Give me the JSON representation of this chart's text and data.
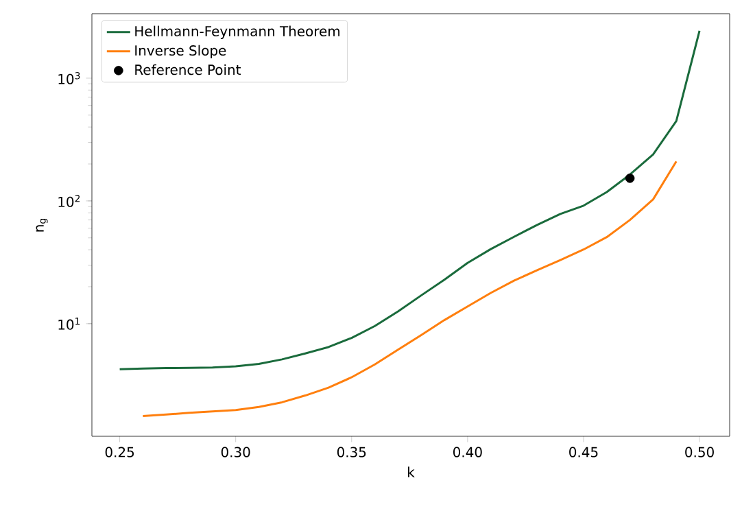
{
  "chart_data": {
    "type": "line",
    "xlabel": "k",
    "ylabel": "n$_{g}$",
    "log": "y",
    "legend": "top left",
    "grid": false,
    "xlim": [
      0.238,
      0.513
    ],
    "xticks": [
      0.25,
      {
        "value": 0.3,
        "label": "0.30"
      },
      0.35,
      {
        "value": 0.4,
        "label": "0.40"
      },
      0.45,
      {
        "value": 0.5,
        "label": "0.50"
      }
    ],
    "ylim": [
      1.21,
      3350
    ],
    "yticks": [
      {
        "value": 10,
        "label": "10$^{1}$"
      },
      {
        "value": 100,
        "label": "10$^{2}$"
      },
      {
        "value": 1000,
        "label": "10$^{3}$"
      }
    ],
    "series": [
      {
        "name": "Hellmann-Feynmann Theorem",
        "color": "#1a6b3c",
        "marker": "none",
        "x": [
          0.25,
          0.26,
          0.27,
          0.28,
          0.29,
          0.3,
          0.31,
          0.32,
          0.33,
          0.34,
          0.35,
          0.36,
          0.37,
          0.38,
          0.39,
          0.4,
          0.41,
          0.42,
          0.43,
          0.44,
          0.45,
          0.46,
          0.47,
          0.48,
          0.49,
          0.5
        ],
        "values": [
          4.25,
          4.31,
          4.35,
          4.37,
          4.4,
          4.5,
          4.7,
          5.12,
          5.72,
          6.45,
          7.66,
          9.57,
          12.6,
          17,
          22.8,
          31.3,
          40.5,
          51,
          63.8,
          78.4,
          91.5,
          118,
          164,
          239,
          448,
          2430
        ]
      },
      {
        "name": "Inverse Slope",
        "color": "#ff7f0e",
        "marker": "none",
        "x": [
          0.26,
          0.27,
          0.28,
          0.29,
          0.3,
          0.31,
          0.32,
          0.33,
          0.34,
          0.35,
          0.36,
          0.37,
          0.38,
          0.39,
          0.4,
          0.41,
          0.42,
          0.43,
          0.44,
          0.45,
          0.46,
          0.47,
          0.48,
          0.49
        ],
        "values": [
          1.77,
          1.82,
          1.88,
          1.93,
          1.98,
          2.1,
          2.29,
          2.6,
          3.01,
          3.66,
          4.66,
          6.14,
          8.08,
          10.7,
          13.8,
          17.8,
          22.4,
          27.3,
          33,
          40.2,
          50.7,
          70,
          103,
          210
        ]
      },
      {
        "name": "Reference Point",
        "type": "scatter",
        "color": "#000000",
        "marker": "circle",
        "x": [
          0.47
        ],
        "values": [
          153
        ]
      }
    ]
  }
}
